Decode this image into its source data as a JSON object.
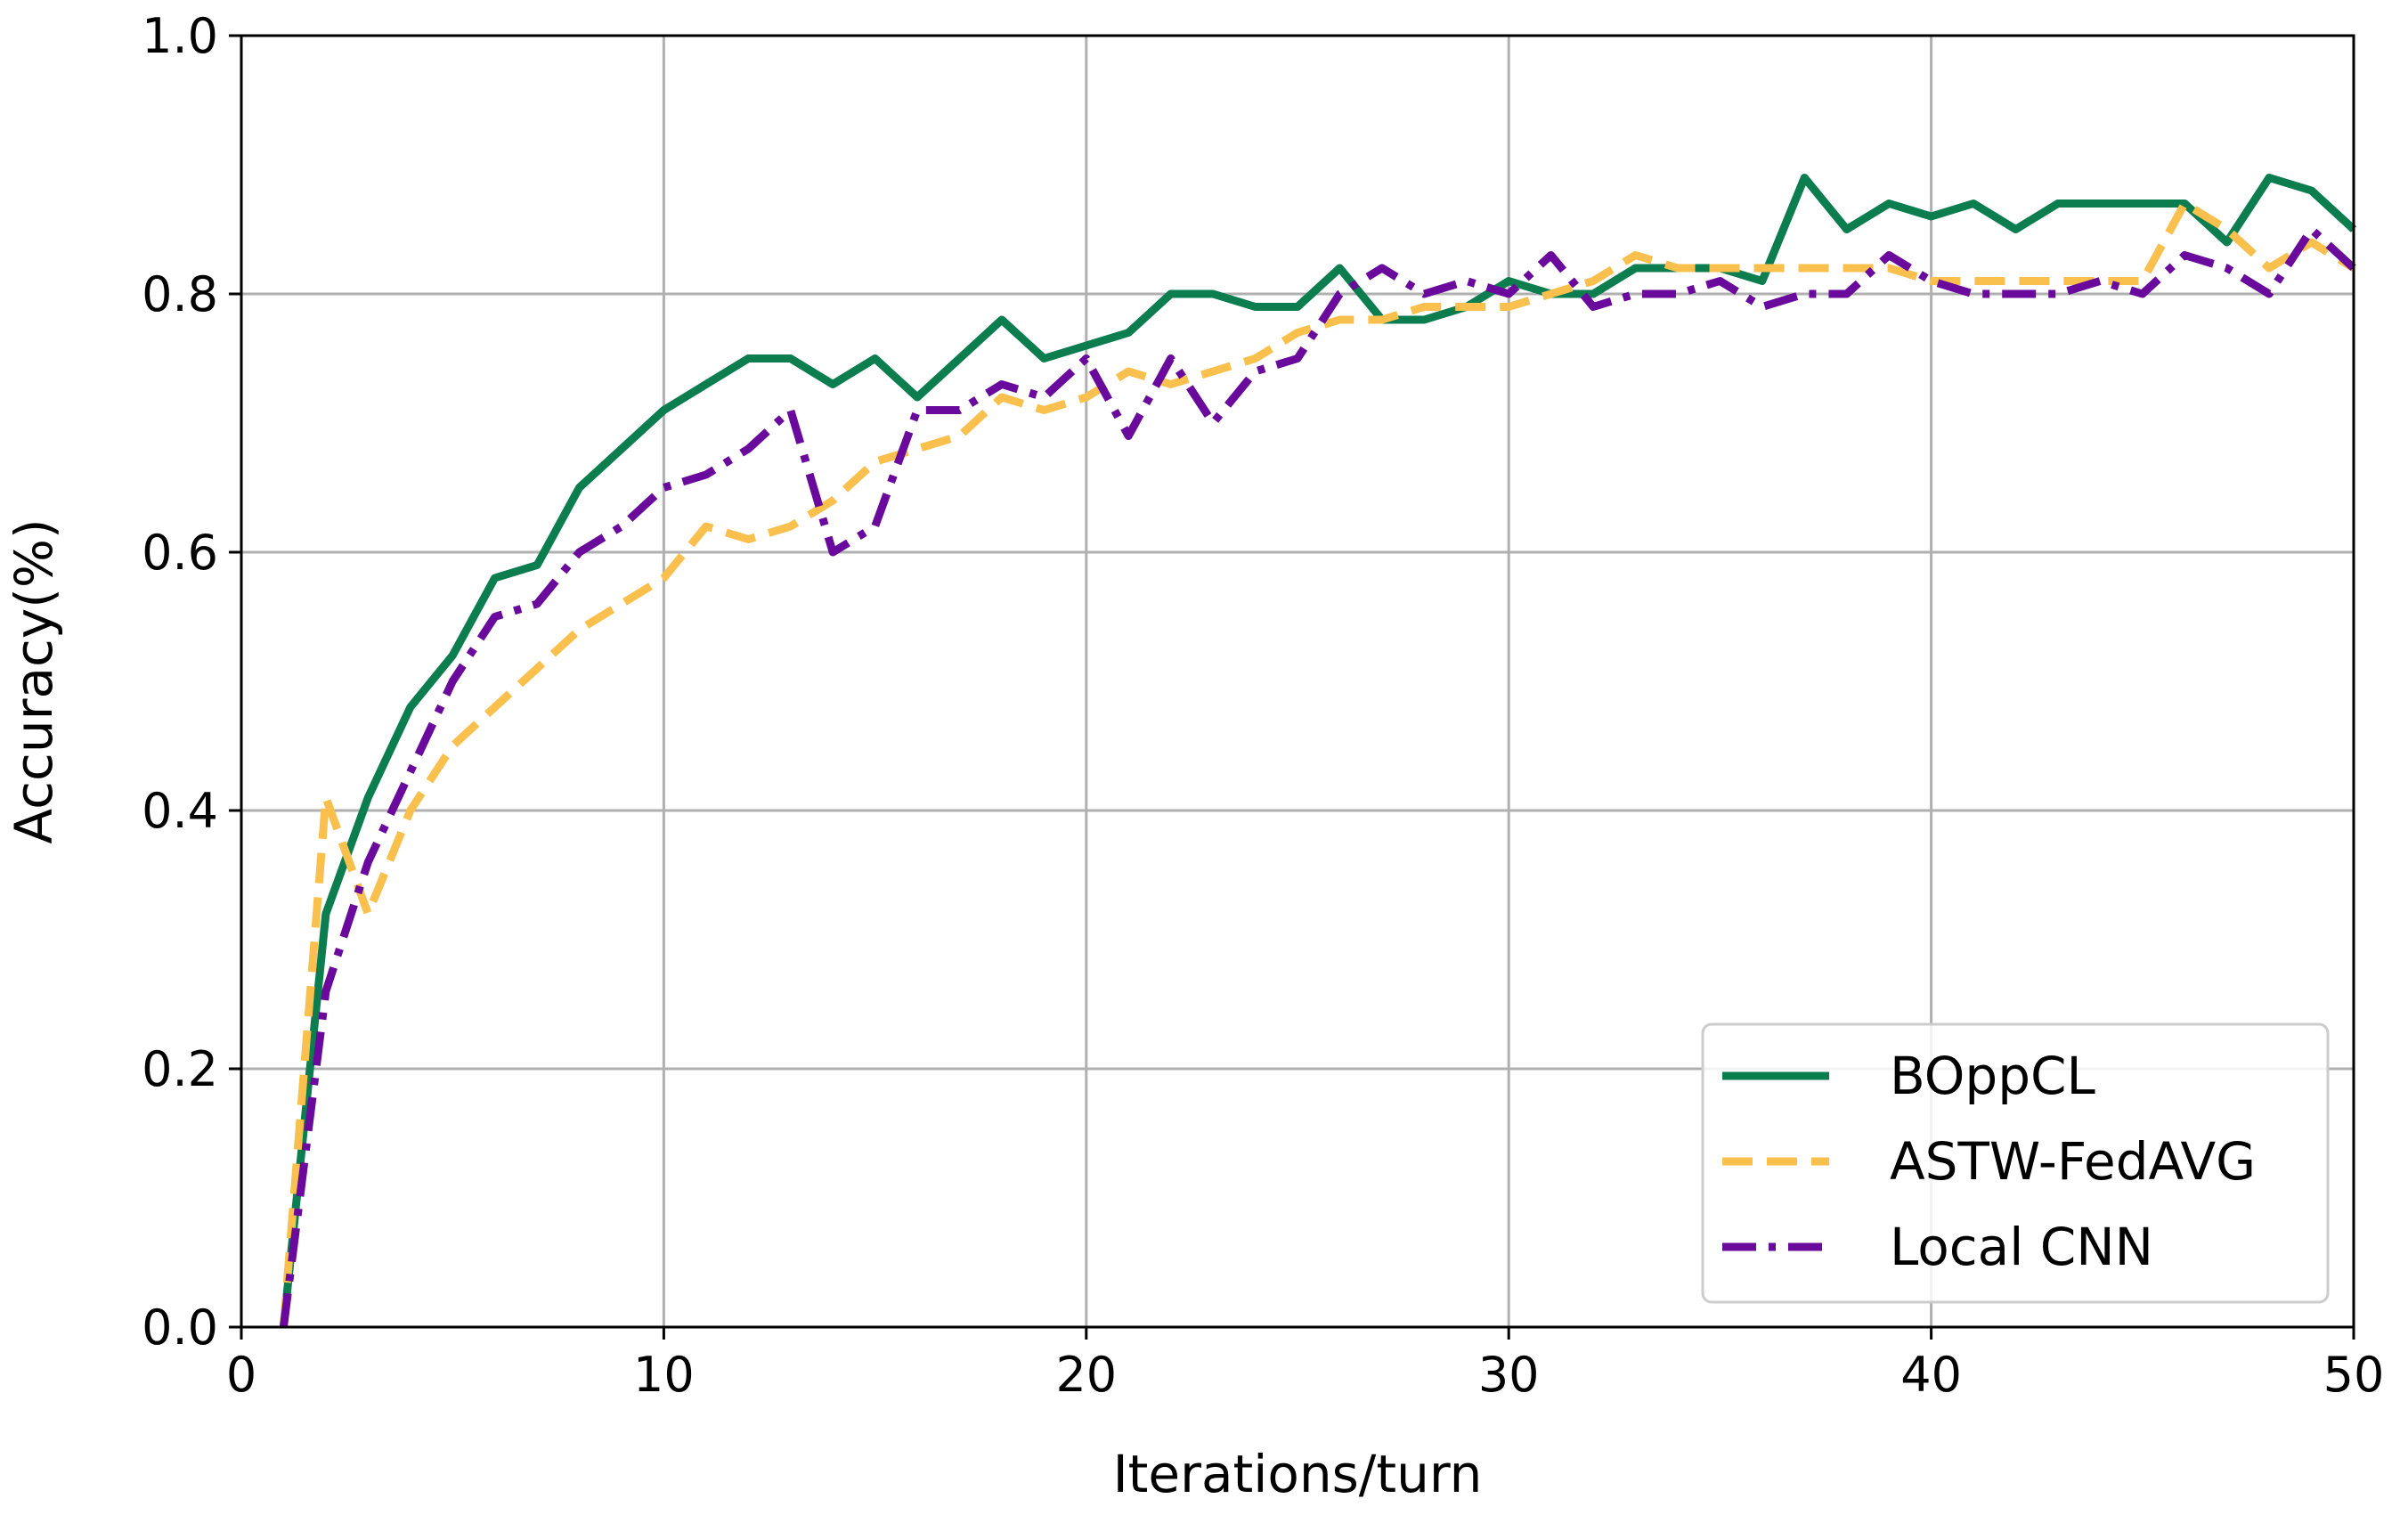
{
  "chart_data": {
    "type": "line",
    "xlabel": "Iterations/turn",
    "ylabel": "Accuracy(%)",
    "xlim": [
      0,
      50
    ],
    "ylim": [
      0.0,
      1.0
    ],
    "xticks": [
      "0",
      "10",
      "20",
      "30",
      "40",
      "50"
    ],
    "yticks": [
      "0.0",
      "0.2",
      "0.4",
      "0.6",
      "0.8",
      "1.0"
    ],
    "grid": true,
    "legend_position": "lower-right",
    "x": [
      1,
      2,
      3,
      4,
      5,
      6,
      7,
      8,
      9,
      10,
      11,
      12,
      13,
      14,
      15,
      16,
      17,
      18,
      19,
      20,
      21,
      22,
      23,
      24,
      25,
      26,
      27,
      28,
      29,
      30,
      31,
      32,
      33,
      34,
      35,
      36,
      37,
      38,
      39,
      40,
      41,
      42,
      43,
      44,
      45,
      46,
      47,
      48,
      49,
      50
    ],
    "series": [
      {
        "name": "BOppCL",
        "color": "#0b7d4f",
        "style": "solid",
        "values": [
          0.0,
          0.32,
          0.41,
          0.48,
          0.52,
          0.58,
          0.59,
          0.65,
          0.68,
          0.71,
          0.73,
          0.75,
          0.75,
          0.73,
          0.75,
          0.72,
          0.75,
          0.78,
          0.75,
          0.76,
          0.77,
          0.8,
          0.8,
          0.79,
          0.79,
          0.82,
          0.78,
          0.78,
          0.79,
          0.81,
          0.8,
          0.8,
          0.82,
          0.82,
          0.82,
          0.81,
          0.89,
          0.85,
          0.87,
          0.86,
          0.87,
          0.85,
          0.87,
          0.87,
          0.87,
          0.87,
          0.84,
          0.89,
          0.88,
          0.85
        ]
      },
      {
        "name": "ASTW-FedAVG",
        "color": "#f9c04e",
        "style": "dashed",
        "values": [
          0.0,
          0.41,
          0.32,
          0.4,
          0.45,
          0.48,
          0.51,
          0.54,
          0.56,
          0.58,
          0.62,
          0.61,
          0.62,
          0.64,
          0.67,
          0.68,
          0.69,
          0.72,
          0.71,
          0.72,
          0.74,
          0.73,
          0.74,
          0.75,
          0.77,
          0.78,
          0.78,
          0.79,
          0.79,
          0.79,
          0.8,
          0.81,
          0.83,
          0.82,
          0.82,
          0.82,
          0.82,
          0.82,
          0.82,
          0.81,
          0.81,
          0.81,
          0.81,
          0.81,
          0.81,
          0.87,
          0.85,
          0.82,
          0.84,
          0.82
        ]
      },
      {
        "name": "Local CNN",
        "color": "#6a0a9c",
        "style": "dashdot",
        "values": [
          0.0,
          0.26,
          0.36,
          0.43,
          0.5,
          0.55,
          0.56,
          0.6,
          0.62,
          0.65,
          0.66,
          0.68,
          0.71,
          0.6,
          0.62,
          0.71,
          0.71,
          0.73,
          0.72,
          0.75,
          0.69,
          0.75,
          0.7,
          0.74,
          0.75,
          0.8,
          0.82,
          0.8,
          0.81,
          0.8,
          0.83,
          0.79,
          0.8,
          0.8,
          0.81,
          0.79,
          0.8,
          0.8,
          0.83,
          0.81,
          0.8,
          0.8,
          0.8,
          0.81,
          0.8,
          0.83,
          0.82,
          0.8,
          0.85,
          0.82
        ]
      }
    ]
  }
}
